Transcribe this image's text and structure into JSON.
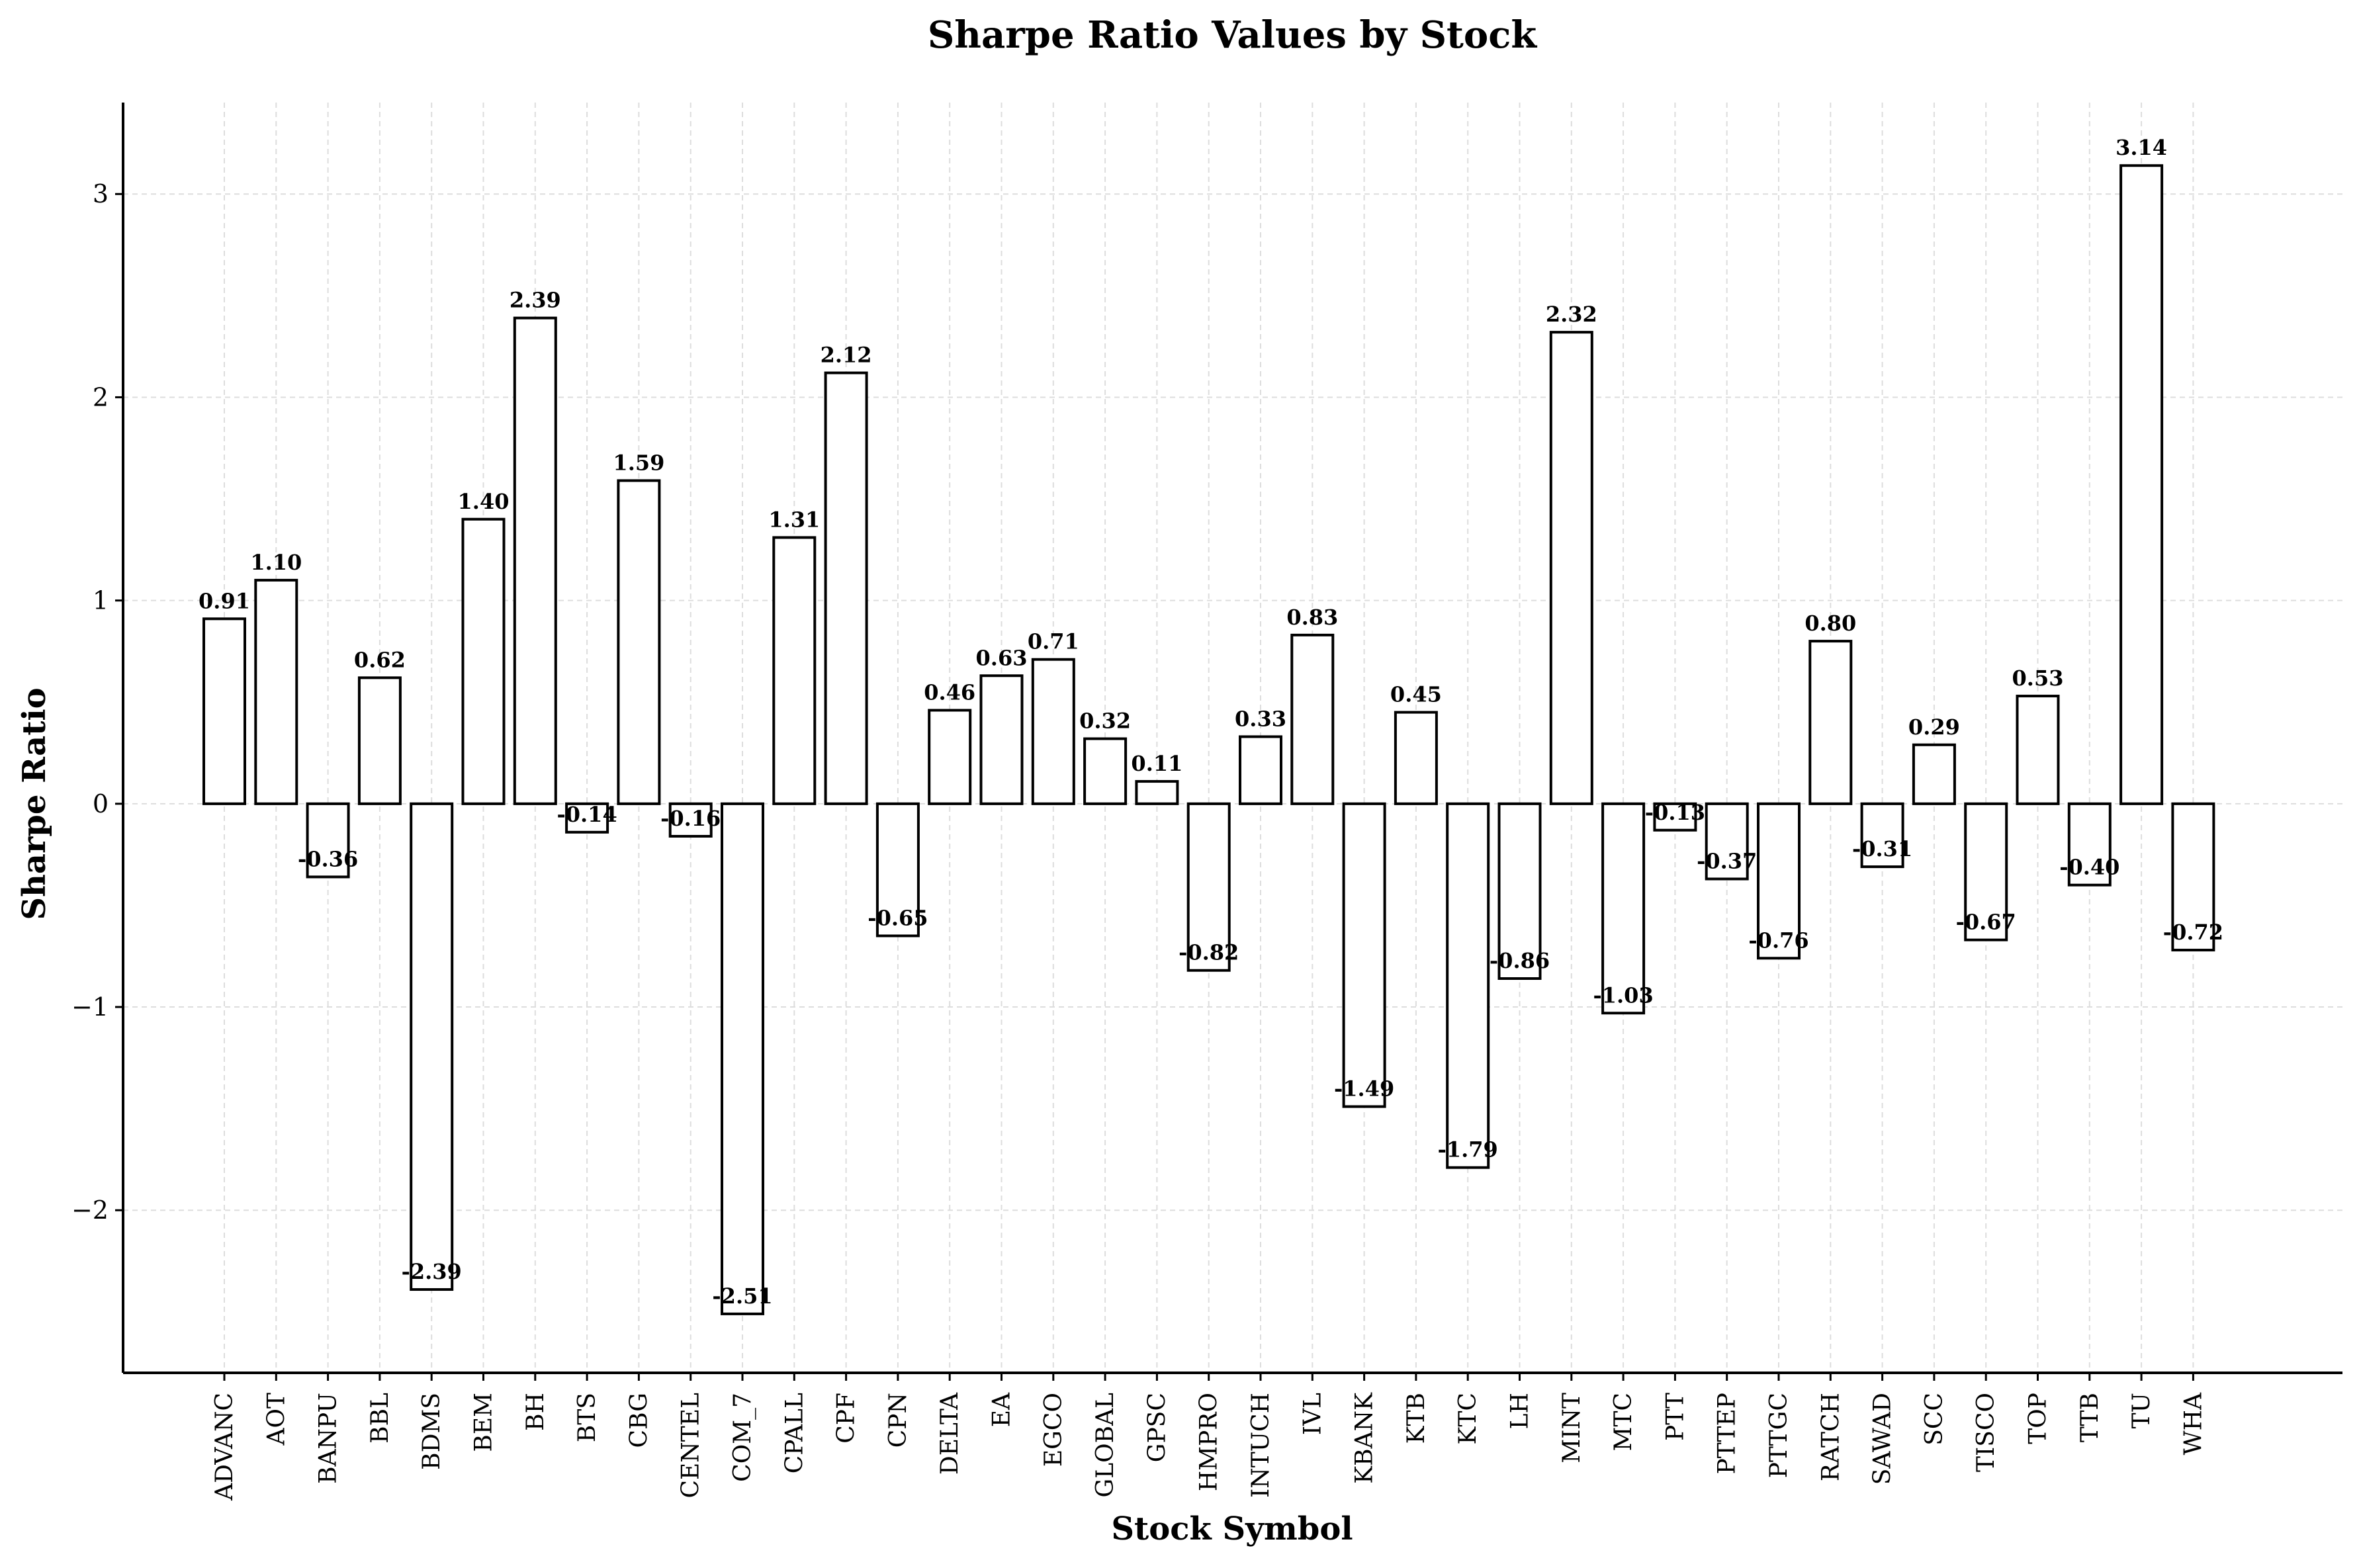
{
  "chart_data": {
    "type": "bar",
    "title": "Sharpe Ratio Values by Stock",
    "xlabel": "Stock Symbol",
    "ylabel": "Sharpe Ratio",
    "ylim": [
      -2.8,
      3.45
    ],
    "yticks": [
      -2,
      -1,
      0,
      1,
      2,
      3
    ],
    "ytick_labels": [
      "−2",
      "−1",
      "0",
      "1",
      "2",
      "3"
    ],
    "grid": true,
    "categories": [
      "ADVANC",
      "AOT",
      "BANPU",
      "BBL",
      "BDMS",
      "BEM",
      "BH",
      "BTS",
      "CBG",
      "CENTEL",
      "COM_7",
      "CPALL",
      "CPF",
      "CPN",
      "DELTA",
      "EA",
      "EGCO",
      "GLOBAL",
      "GPSC",
      "HMPRO",
      "INTUCH",
      "IVL",
      "KBANK",
      "KTB",
      "KTC",
      "LH",
      "MINT",
      "MTC",
      "PTT",
      "PTTEP",
      "PTTGC",
      "RATCH",
      "SAWAD",
      "SCC",
      "TISCO",
      "TOP",
      "TTB",
      "TU",
      "WHA"
    ],
    "values": [
      0.91,
      1.1,
      -0.36,
      0.62,
      -2.39,
      1.4,
      2.39,
      -0.14,
      1.59,
      -0.16,
      -2.51,
      1.31,
      2.12,
      -0.65,
      0.46,
      0.63,
      0.71,
      0.32,
      0.11,
      -0.82,
      0.33,
      0.83,
      -1.49,
      0.45,
      -1.79,
      -0.86,
      2.32,
      -1.03,
      -0.13,
      -0.37,
      -0.76,
      0.8,
      -0.31,
      0.29,
      -0.67,
      0.53,
      -0.4,
      3.14,
      -0.72
    ],
    "value_labels": [
      "0.91",
      "1.10",
      "-0.36",
      "0.62",
      "-2.39",
      "1.40",
      "2.39",
      "-0.14",
      "1.59",
      "-0.16",
      "-2.51",
      "1.31",
      "2.12",
      "-0.65",
      "0.46",
      "0.63",
      "0.71",
      "0.32",
      "0.11",
      "-0.82",
      "0.33",
      "0.83",
      "-1.49",
      "0.45",
      "-1.79",
      "-0.86",
      "2.32",
      "-1.03",
      "-0.13",
      "-0.37",
      "-0.76",
      "0.80",
      "-0.31",
      "0.29",
      "-0.67",
      "0.53",
      "-0.40",
      "3.14",
      "-0.72"
    ],
    "bar_fill": "#ffffff",
    "bar_edge": "#000000"
  }
}
